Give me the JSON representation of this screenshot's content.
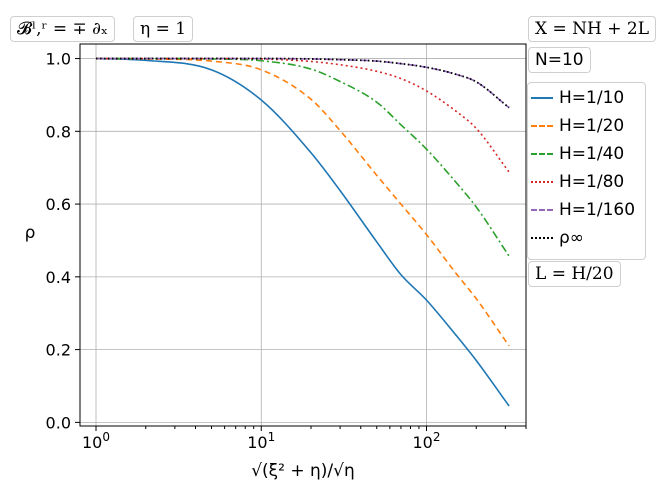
{
  "chart_data": {
    "type": "line",
    "xlabel": "√(ξ² + η)/√η",
    "ylabel": "ρ",
    "xscale": "log",
    "xlim": [
      0.8,
      400
    ],
    "ylim": [
      -0.01,
      1.04
    ],
    "x_ticks": [
      1,
      10,
      100
    ],
    "x_tick_labels": [
      {
        "base": "10",
        "exp": "0"
      },
      {
        "base": "10",
        "exp": "1"
      },
      {
        "base": "10",
        "exp": "2"
      }
    ],
    "y_ticks": [
      "0.0",
      "0.2",
      "0.4",
      "0.6",
      "0.8",
      "1.0"
    ],
    "grid": true,
    "legend_placement": "right, outside",
    "annotations": {
      "top_left_1": "𝓑ˡ,ʳ = ∓ ∂ₓ",
      "top_left_2": "η = 1",
      "top_right": "X = NH + 2L",
      "legend_title": "N=10",
      "bottom_right": "L = H/20"
    },
    "x": [
      1,
      2,
      5,
      10,
      20,
      30,
      50,
      70,
      100,
      150,
      200,
      316
    ],
    "series": [
      {
        "name": "H=1/10",
        "color": "#1f77b4",
        "dash": "solid",
        "values": [
          1.0,
          0.995,
          0.969,
          0.886,
          0.741,
          0.637,
          0.496,
          0.406,
          0.336,
          0.241,
          0.17,
          0.045
        ]
      },
      {
        "name": "H=1/20",
        "color": "#ff7f0e",
        "dash": "6,4",
        "values": [
          1.0,
          0.999,
          0.993,
          0.969,
          0.888,
          0.802,
          0.679,
          0.6,
          0.516,
          0.411,
          0.34,
          0.21
        ]
      },
      {
        "name": "H=1/40",
        "color": "#2ca02c",
        "dash": "8,3,2,3",
        "values": [
          1.0,
          1.0,
          0.999,
          0.994,
          0.971,
          0.937,
          0.88,
          0.818,
          0.751,
          0.661,
          0.592,
          0.457
        ]
      },
      {
        "name": "H=1/80",
        "color": "#d62728",
        "dash": "2,3",
        "values": [
          1.0,
          1.0,
          1.0,
          0.999,
          0.992,
          0.983,
          0.965,
          0.945,
          0.911,
          0.856,
          0.808,
          0.688
        ]
      },
      {
        "name": "H=1/160",
        "color": "#9467bd",
        "dash": "8,4",
        "values": [
          1.0,
          1.0,
          1.0,
          1.0,
          0.999,
          0.997,
          0.993,
          0.986,
          0.976,
          0.957,
          0.936,
          0.865
        ]
      },
      {
        "name": "ρ∞",
        "color": "#000000",
        "dash": "1.5,2.5",
        "values": [
          1.0,
          1.0,
          1.0,
          1.0,
          0.999,
          0.997,
          0.993,
          0.986,
          0.976,
          0.957,
          0.936,
          0.865
        ]
      }
    ]
  }
}
